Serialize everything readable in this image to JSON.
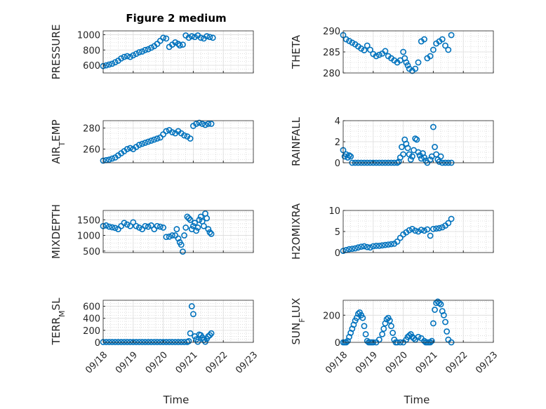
{
  "figure": {
    "title": "Figure 2 medium",
    "xlabel": "Time",
    "xticks": [
      "09/18",
      "09/19",
      "09/20",
      "09/21",
      "09/22",
      "09/23"
    ],
    "marker_color": "#0072BD",
    "grid_color": "#c8c8c8"
  },
  "chart_data": [
    {
      "type": "scatter",
      "name": "PRESSURE",
      "ylabel": "PRESSURE",
      "ylim": [
        500,
        1050
      ],
      "yticks": [
        600,
        800,
        1000
      ],
      "xlim": [
        0,
        5
      ],
      "x": [
        0.0,
        0.1,
        0.2,
        0.3,
        0.4,
        0.5,
        0.6,
        0.7,
        0.8,
        0.9,
        1.0,
        1.1,
        1.2,
        1.3,
        1.4,
        1.5,
        1.6,
        1.7,
        1.8,
        1.9,
        2.0,
        2.1,
        2.2,
        2.3,
        2.4,
        2.5,
        2.55,
        2.65,
        2.75,
        2.85,
        2.95,
        3.05,
        3.15,
        3.25,
        3.35,
        3.45,
        3.55,
        3.65
      ],
      "y": [
        590,
        600,
        610,
        620,
        640,
        660,
        690,
        710,
        720,
        710,
        730,
        750,
        770,
        780,
        800,
        810,
        830,
        850,
        880,
        920,
        960,
        950,
        840,
        870,
        900,
        880,
        860,
        870,
        990,
        960,
        980,
        970,
        990,
        960,
        950,
        980,
        970,
        960
      ]
    },
    {
      "type": "scatter",
      "name": "THETA",
      "ylabel": "THETA",
      "ylim": [
        280,
        290
      ],
      "yticks": [
        280,
        285,
        290
      ],
      "xlim": [
        0,
        5
      ],
      "x": [
        0.0,
        0.1,
        0.2,
        0.3,
        0.4,
        0.5,
        0.6,
        0.7,
        0.8,
        0.9,
        1.0,
        1.1,
        1.2,
        1.3,
        1.4,
        1.5,
        1.6,
        1.7,
        1.8,
        1.9,
        2.0,
        2.05,
        2.1,
        2.15,
        2.2,
        2.3,
        2.4,
        2.5,
        2.6,
        2.7,
        2.8,
        2.9,
        3.0,
        3.1,
        3.2,
        3.3,
        3.4,
        3.5,
        3.6
      ],
      "y": [
        289.0,
        288.0,
        287.6,
        287.2,
        286.8,
        286.3,
        285.8,
        285.4,
        286.5,
        285.5,
        284.5,
        284.0,
        284.3,
        284.6,
        285.2,
        284.0,
        283.5,
        283.0,
        282.5,
        283.0,
        285.0,
        283.5,
        282.5,
        281.8,
        281.0,
        280.5,
        281.0,
        282.5,
        287.5,
        288.0,
        283.5,
        284.0,
        285.5,
        287.0,
        287.5,
        288.0,
        286.5,
        285.5,
        289.0
      ]
    },
    {
      "type": "scatter",
      "name": "AIR_TEMP",
      "ylabel": "AIR_TEMP",
      "ylim": [
        247,
        287
      ],
      "yticks": [
        260,
        280
      ],
      "xlim": [
        0,
        5
      ],
      "x": [
        0.0,
        0.1,
        0.2,
        0.3,
        0.4,
        0.5,
        0.6,
        0.7,
        0.8,
        0.9,
        1.0,
        1.1,
        1.2,
        1.3,
        1.4,
        1.5,
        1.6,
        1.7,
        1.8,
        1.9,
        2.0,
        2.1,
        2.2,
        2.3,
        2.4,
        2.5,
        2.6,
        2.7,
        2.8,
        2.9,
        3.0,
        3.1,
        3.2,
        3.3,
        3.4,
        3.5,
        3.6
      ],
      "y": [
        249,
        249.5,
        250,
        251,
        252,
        254,
        256,
        258,
        260,
        261,
        260,
        262,
        264,
        265,
        266,
        267,
        268,
        269,
        270,
        271,
        274,
        277,
        278,
        276,
        275,
        277,
        275,
        273,
        272,
        270,
        282,
        284,
        285,
        284,
        283,
        284,
        284
      ]
    },
    {
      "type": "scatter",
      "name": "RAINFALL",
      "ylabel": "RAINFALL",
      "ylim": [
        0,
        4
      ],
      "yticks": [
        0,
        2,
        4
      ],
      "xlim": [
        0,
        5
      ],
      "x": [
        0.0,
        0.05,
        0.1,
        0.15,
        0.2,
        0.25,
        0.3,
        0.4,
        0.5,
        0.6,
        0.7,
        0.8,
        0.9,
        1.0,
        1.1,
        1.2,
        1.3,
        1.4,
        1.5,
        1.6,
        1.7,
        1.8,
        1.85,
        1.9,
        1.95,
        2.0,
        2.05,
        2.1,
        2.15,
        2.2,
        2.25,
        2.3,
        2.35,
        2.4,
        2.45,
        2.5,
        2.55,
        2.6,
        2.65,
        2.7,
        2.75,
        2.8,
        2.9,
        2.95,
        3.0,
        3.05,
        3.1,
        3.15,
        3.2,
        3.25,
        3.3,
        3.4,
        3.5,
        3.6
      ],
      "y": [
        1.2,
        0.6,
        0.8,
        0.5,
        0.7,
        0.6,
        0,
        0,
        0,
        0,
        0,
        0,
        0,
        0,
        0,
        0,
        0,
        0,
        0,
        0,
        0,
        0,
        0.1,
        0.5,
        1.5,
        0.8,
        2.2,
        1.8,
        1.4,
        0.8,
        0.3,
        0.6,
        1.2,
        2.3,
        2.2,
        1.0,
        0.7,
        0.4,
        0.9,
        0.5,
        0.2,
        0,
        0.3,
        0.6,
        3.4,
        1.5,
        0.8,
        0.3,
        0.1,
        0.6,
        0,
        0,
        0,
        0
      ]
    },
    {
      "type": "scatter",
      "name": "MIXDEPTH",
      "ylabel": "MIXDEPTH",
      "ylim": [
        450,
        1800
      ],
      "yticks": [
        500,
        1000,
        1500
      ],
      "xlim": [
        0,
        5
      ],
      "x": [
        0.0,
        0.1,
        0.2,
        0.3,
        0.4,
        0.5,
        0.6,
        0.7,
        0.8,
        0.9,
        1.0,
        1.1,
        1.2,
        1.3,
        1.4,
        1.5,
        1.6,
        1.7,
        1.8,
        1.9,
        2.0,
        2.1,
        2.2,
        2.3,
        2.4,
        2.45,
        2.5,
        2.55,
        2.6,
        2.65,
        2.7,
        2.75,
        2.8,
        2.85,
        2.9,
        2.95,
        3.0,
        3.05,
        3.1,
        3.15,
        3.2,
        3.25,
        3.3,
        3.35,
        3.4,
        3.45,
        3.5,
        3.55,
        3.6
      ],
      "y": [
        1300,
        1320,
        1280,
        1260,
        1240,
        1200,
        1300,
        1400,
        1350,
        1300,
        1420,
        1300,
        1250,
        1200,
        1300,
        1280,
        1320,
        1200,
        1300,
        1280,
        1250,
        950,
        960,
        1000,
        1000,
        1200,
        900,
        780,
        700,
        480,
        1000,
        1250,
        1600,
        1550,
        1500,
        1200,
        1300,
        1400,
        1150,
        1250,
        1500,
        1600,
        1450,
        1300,
        1700,
        1550,
        1200,
        1100,
        1050
      ]
    },
    {
      "type": "scatter",
      "name": "H2OMIXRA",
      "ylabel": "H2OMIXRA",
      "ylim": [
        0,
        10
      ],
      "yticks": [
        0,
        5,
        10
      ],
      "xlim": [
        0,
        5
      ],
      "x": [
        0.0,
        0.1,
        0.2,
        0.3,
        0.4,
        0.5,
        0.6,
        0.7,
        0.8,
        0.9,
        1.0,
        1.1,
        1.2,
        1.3,
        1.4,
        1.5,
        1.6,
        1.7,
        1.8,
        1.9,
        2.0,
        2.1,
        2.2,
        2.3,
        2.4,
        2.5,
        2.6,
        2.7,
        2.8,
        2.9,
        3.0,
        3.1,
        3.2,
        3.3,
        3.4,
        3.5,
        3.6
      ],
      "y": [
        0.4,
        0.6,
        0.8,
        0.9,
        1.0,
        1.2,
        1.4,
        1.5,
        1.3,
        1.2,
        1.5,
        1.6,
        1.6,
        1.7,
        1.8,
        1.9,
        2.0,
        2.1,
        2.6,
        3.5,
        4.3,
        4.8,
        5.3,
        5.6,
        5.2,
        5.0,
        5.4,
        5.2,
        5.5,
        4.0,
        5.6,
        5.7,
        5.8,
        6.0,
        6.4,
        7.0,
        8.0
      ]
    },
    {
      "type": "scatter",
      "name": "TERR_MSL",
      "ylabel": "TERR_MSL",
      "ylim": [
        0,
        700
      ],
      "yticks": [
        0,
        200,
        400,
        600
      ],
      "xlim": [
        0,
        5
      ],
      "x": [
        0.0,
        0.1,
        0.2,
        0.3,
        0.4,
        0.5,
        0.6,
        0.7,
        0.8,
        0.9,
        1.0,
        1.1,
        1.2,
        1.3,
        1.4,
        1.5,
        1.6,
        1.7,
        1.8,
        1.9,
        2.0,
        2.1,
        2.2,
        2.3,
        2.4,
        2.5,
        2.6,
        2.7,
        2.8,
        2.85,
        2.9,
        2.95,
        3.0,
        3.05,
        3.1,
        3.15,
        3.2,
        3.25,
        3.3,
        3.35,
        3.4,
        3.45,
        3.5,
        3.55,
        3.6
      ],
      "y": [
        5,
        5,
        5,
        5,
        5,
        5,
        5,
        5,
        5,
        5,
        5,
        5,
        5,
        5,
        5,
        5,
        5,
        5,
        5,
        5,
        5,
        5,
        5,
        5,
        5,
        5,
        5,
        5,
        5,
        20,
        150,
        600,
        470,
        100,
        50,
        10,
        130,
        120,
        80,
        40,
        10,
        60,
        100,
        120,
        150
      ]
    },
    {
      "type": "scatter",
      "name": "SUN_FLUX",
      "ylabel": "SUN_FLUX",
      "ylim": [
        0,
        310
      ],
      "yticks": [
        0,
        200
      ],
      "xlim": [
        0,
        5
      ],
      "x": [
        0.0,
        0.05,
        0.1,
        0.15,
        0.2,
        0.25,
        0.3,
        0.35,
        0.4,
        0.45,
        0.5,
        0.55,
        0.6,
        0.65,
        0.7,
        0.75,
        0.8,
        0.85,
        0.9,
        0.95,
        1.0,
        1.1,
        1.2,
        1.3,
        1.35,
        1.4,
        1.45,
        1.5,
        1.55,
        1.6,
        1.65,
        1.7,
        1.75,
        1.8,
        1.9,
        2.0,
        2.1,
        2.15,
        2.2,
        2.25,
        2.3,
        2.35,
        2.4,
        2.5,
        2.6,
        2.7,
        2.75,
        2.8,
        2.85,
        2.9,
        2.95,
        3.0,
        3.05,
        3.1,
        3.15,
        3.2,
        3.25,
        3.3,
        3.35,
        3.4,
        3.45,
        3.5,
        3.6
      ],
      "y": [
        0,
        0,
        0,
        10,
        40,
        70,
        100,
        130,
        160,
        180,
        210,
        220,
        200,
        180,
        120,
        60,
        10,
        0,
        0,
        0,
        0,
        0,
        20,
        60,
        100,
        140,
        170,
        180,
        160,
        120,
        70,
        20,
        0,
        0,
        0,
        0,
        20,
        40,
        50,
        60,
        40,
        30,
        20,
        40,
        30,
        10,
        0,
        0,
        0,
        0,
        10,
        140,
        240,
        290,
        300,
        290,
        280,
        230,
        200,
        150,
        80,
        20,
        0
      ]
    }
  ]
}
